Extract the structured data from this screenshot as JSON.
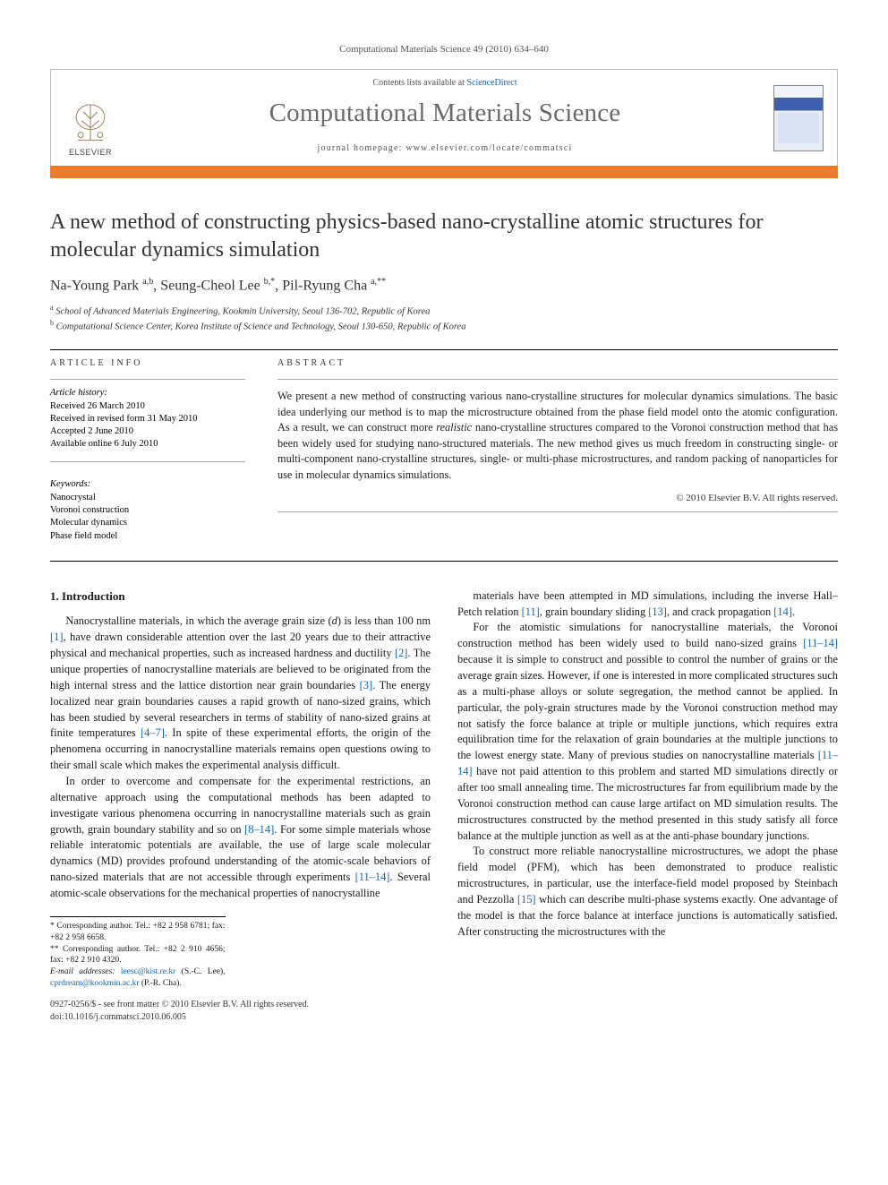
{
  "journal_ref": "Computational Materials Science 49 (2010) 634–640",
  "header": {
    "contents_prefix": "Contents lists available at ",
    "contents_link": "ScienceDirect",
    "journal_title": "Computational Materials Science",
    "homepage_prefix": "journal homepage: ",
    "homepage_url": "www.elsevier.com/locate/commatsci",
    "publisher": "ELSEVIER"
  },
  "colors": {
    "accent_bar": "#eb7c2a",
    "link": "#1066b3",
    "title_grey": "#6a6a6a",
    "rule": "#000000"
  },
  "paper": {
    "title": "A new method of constructing physics-based nano-crystalline atomic structures for molecular dynamics simulation",
    "authors_html": "Na-Young Park <sup>a,b</sup>, Seung-Cheol Lee <sup>b,*</sup>, Pil-Ryung Cha <sup>a,**</sup>",
    "affiliations": [
      {
        "sup": "a",
        "text": "School of Advanced Materials Engineering, Kookmin University, Seoul 136-702, Republic of Korea"
      },
      {
        "sup": "b",
        "text": "Computational Science Center, Korea Institute of Science and Technology, Seoul 130-650, Republic of Korea"
      }
    ]
  },
  "article_info": {
    "heading": "ARTICLE INFO",
    "history_label": "Article history:",
    "history": [
      "Received 26 March 2010",
      "Received in revised form 31 May 2010",
      "Accepted 2 June 2010",
      "Available online 6 July 2010"
    ],
    "keywords_label": "Keywords:",
    "keywords": [
      "Nanocrystal",
      "Voronoi construction",
      "Molecular dynamics",
      "Phase field model"
    ]
  },
  "abstract": {
    "heading": "ABSTRACT",
    "text": "We present a new method of constructing various nano-crystalline structures for molecular dynamics simulations. The basic idea underlying our method is to map the microstructure obtained from the phase field model onto the atomic configuration. As a result, we can construct more realistic nano-crystalline structures compared to the Voronoi construction method that has been widely used for studying nano-structured materials. The new method gives us much freedom in constructing single- or multi-component nano-crystalline structures, single- or multi-phase microstructures, and random packing of nanoparticles for use in molecular dynamics simulations.",
    "copyright": "© 2010 Elsevier B.V. All rights reserved."
  },
  "body": {
    "section_heading": "1. Introduction",
    "p1": "Nanocrystalline materials, in which the average grain size (d) is less than 100 nm [1], have drawn considerable attention over the last 20 years due to their attractive physical and mechanical properties, such as increased hardness and ductility [2]. The unique properties of nanocrystalline materials are believed to be originated from the high internal stress and the lattice distortion near grain boundaries [3]. The energy localized near grain boundaries causes a rapid growth of nano-sized grains, which has been studied by several researchers in terms of stability of nano-sized grains at finite temperatures [4–7]. In spite of these experimental efforts, the origin of the phenomena occurring in nanocrystalline materials remains open questions owing to their small scale which makes the experimental analysis difficult.",
    "p2": "In order to overcome and compensate for the experimental restrictions, an alternative approach using the computational methods has been adapted to investigate various phenomena occurring in nanocrystalline materials such as grain growth, grain boundary stability and so on [8–14]. For some simple materials whose reliable interatomic potentials are available, the use of large scale molecular dynamics (MD) provides profound understanding of the atomic-scale behaviors of nano-sized materials that are not accessible through experiments [11–14]. Several atomic-scale observations for the mechanical properties of nanocrystalline",
    "p3": "materials have been attempted in MD simulations, including the inverse Hall–Petch relation [11], grain boundary sliding [13], and crack propagation [14].",
    "p4": "For the atomistic simulations for nanocrystalline materials, the Voronoi construction method has been widely used to build nano-sized grains [11–14] because it is simple to construct and possible to control the number of grains or the average grain sizes. However, if one is interested in more complicated structures such as a multi-phase alloys or solute segregation, the method cannot be applied. In particular, the poly-grain structures made by the Voronoi construction method may not satisfy the force balance at triple or multiple junctions, which requires extra equilibration time for the relaxation of grain boundaries at the multiple junctions to the lowest energy state. Many of previous studies on nanocrystalline materials [11–14] have not paid attention to this problem and started MD simulations directly or after too small annealing time. The microstructures far from equilibrium made by the Voronoi construction method can cause large artifact on MD simulation results. The microstructures constructed by the method presented in this study satisfy all force balance at the multiple junction as well as at the anti-phase boundary junctions.",
    "p5": "To construct more reliable nanocrystalline microstructures, we adopt the phase field model (PFM), which has been demonstrated to produce realistic microstructures, in particular, use the interface-field model proposed by Steinbach and Pezzolla [15] which can describe multi-phase systems exactly. One advantage of the model is that the force balance at interface junctions is automatically satisfied. After constructing the microstructures with the"
  },
  "footnotes": {
    "c1": "* Corresponding author. Tel.: +82 2 958 6781; fax: +82 2 958 6658.",
    "c2": "** Corresponding author. Tel.: +82 2 910 4656; fax: +82 2 910 4320.",
    "emails_label": "E-mail addresses:",
    "email1": "leesc@kist.re.kr",
    "email1_who": " (S.-C. Lee), ",
    "email2": "cprdream@kookmin.ac.kr",
    "email2_who": " (P.-R. Cha)."
  },
  "footer": {
    "left1": "0927-0256/$ - see front matter © 2010 Elsevier B.V. All rights reserved.",
    "left2": "doi:10.1016/j.commatsci.2010.06.005"
  }
}
